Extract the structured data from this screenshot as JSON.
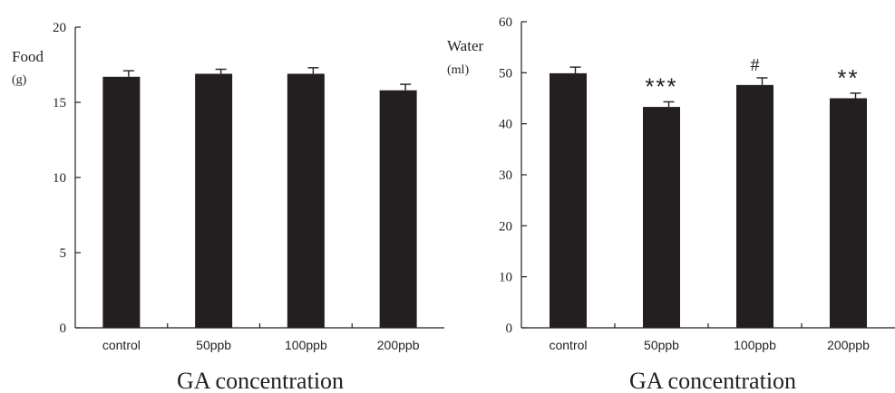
{
  "chart_data": [
    {
      "type": "bar",
      "categories": [
        "control",
        "50ppb",
        "100ppb",
        "200ppb"
      ],
      "values": [
        16.7,
        16.9,
        16.9,
        15.8
      ],
      "errors": [
        0.4,
        0.3,
        0.4,
        0.4
      ],
      "annotations": [
        "",
        "",
        "",
        ""
      ],
      "ylabel": "Food",
      "yunit": "(g)",
      "xlabel": "GA concentration",
      "ylim": [
        0,
        20
      ],
      "yticks": [
        0,
        5,
        10,
        15,
        20
      ],
      "bar_color": "#231f20",
      "grid": false
    },
    {
      "type": "bar",
      "categories": [
        "control",
        "50ppb",
        "100ppb",
        "200ppb"
      ],
      "values": [
        49.9,
        43.3,
        47.6,
        45.0
      ],
      "errors": [
        1.2,
        1.0,
        1.4,
        1.0
      ],
      "annotations": [
        "",
        "***",
        "#",
        "**"
      ],
      "ylabel": "Water",
      "yunit": "(ml)",
      "xlabel": "GA concentration",
      "ylim": [
        0,
        60
      ],
      "yticks": [
        0,
        10,
        20,
        30,
        40,
        50,
        60
      ],
      "bar_color": "#231f20",
      "grid": false
    }
  ]
}
